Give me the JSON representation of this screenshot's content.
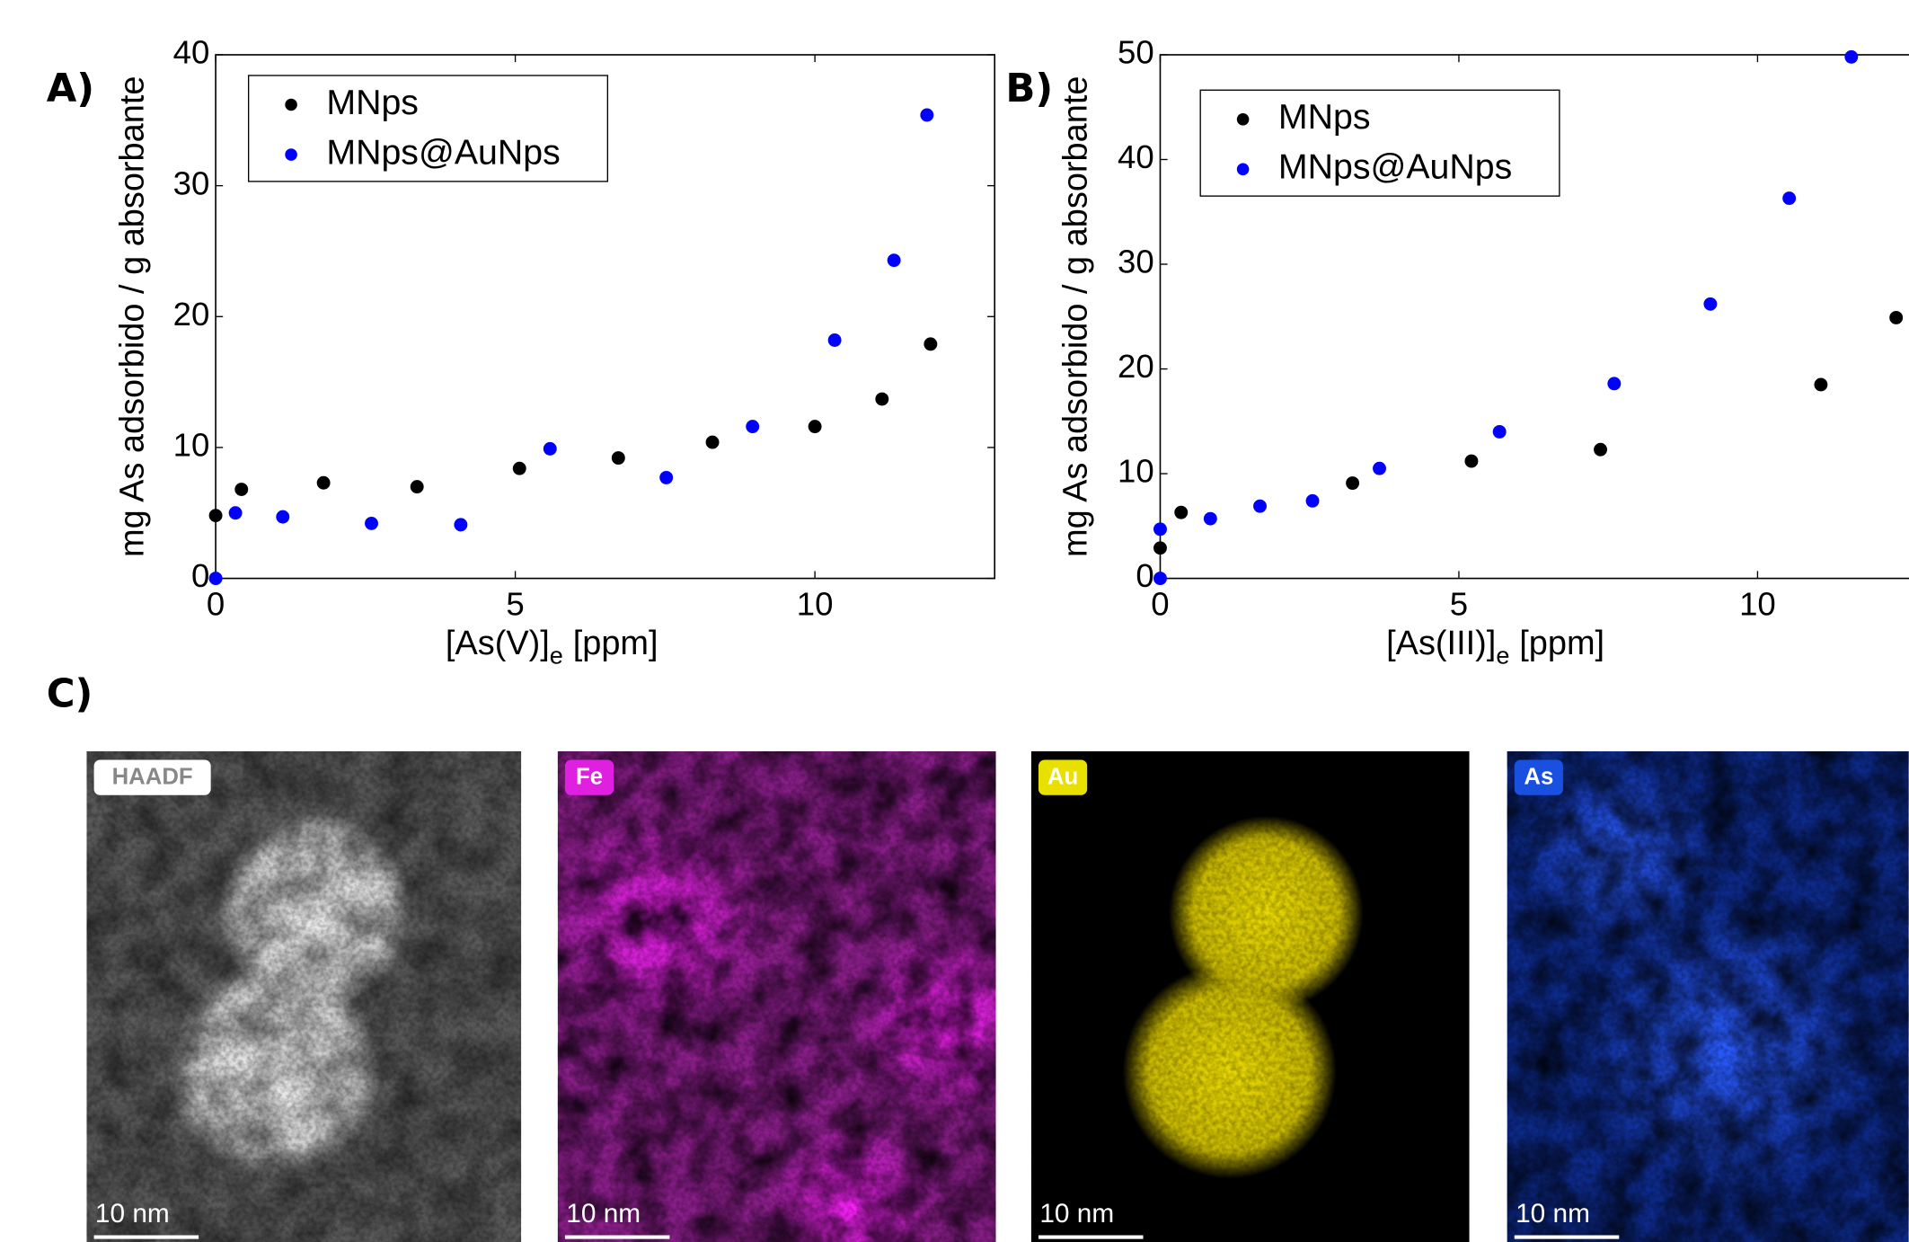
{
  "chart_data": [
    {
      "type": "scatter",
      "panel": "A)",
      "xlabel": [
        "[As(V)]",
        "e",
        "[ppm]"
      ],
      "ylabel": "mg As adsorbido / g absorbante",
      "xlim": [
        0,
        13
      ],
      "ylim": [
        0,
        40
      ],
      "xticks": [
        0,
        5,
        10
      ],
      "yticks": [
        0,
        10,
        20,
        30,
        40
      ],
      "grid": false,
      "legend": "upper left",
      "series": [
        {
          "name": "MNps",
          "color": "#000000",
          "x": [
            0,
            0.43,
            1.8,
            3.36,
            5.07,
            6.72,
            8.29,
            10,
            11.12,
            11.93
          ],
          "values": [
            4.8,
            6.8,
            7.3,
            7.0,
            8.4,
            9.2,
            10.4,
            11.6,
            13.7,
            17.9
          ]
        },
        {
          "name": "MNps@AuNps",
          "color": "#0000ff",
          "x": [
            0,
            0.33,
            1.12,
            2.6,
            4.09,
            5.58,
            7.52,
            8.96,
            10.33,
            11.32,
            11.87
          ],
          "values": [
            0,
            5.0,
            4.7,
            4.2,
            4.1,
            9.9,
            7.7,
            11.6,
            18.2,
            24.3,
            35.4
          ]
        }
      ]
    },
    {
      "type": "scatter",
      "panel": "B)",
      "xlabel": [
        "[As(III)]",
        "e",
        "[ppm]"
      ],
      "ylabel": "mg As adsorbido / g absorbante",
      "xlim": [
        0,
        13
      ],
      "ylim": [
        0,
        50
      ],
      "xticks": [
        0,
        5,
        10
      ],
      "yticks": [
        0,
        10,
        20,
        30,
        40,
        50
      ],
      "grid": false,
      "legend": "upper left",
      "series": [
        {
          "name": "MNps",
          "color": "#000000",
          "x": [
            0,
            0.35,
            3.22,
            5.21,
            7.37,
            11.06,
            12.32
          ],
          "values": [
            2.9,
            6.3,
            9.1,
            11.2,
            12.3,
            18.5,
            24.9
          ]
        },
        {
          "name": "MNps@AuNps",
          "color": "#0000ff",
          "x": [
            0,
            0,
            0.84,
            1.67,
            2.55,
            3.67,
            5.68,
            7.6,
            9.21,
            10.53,
            11.57
          ],
          "values": [
            0,
            4.7,
            5.7,
            6.9,
            7.4,
            10.5,
            14.0,
            18.6,
            26.2,
            36.3,
            49.8
          ]
        }
      ]
    }
  ],
  "micrographs": {
    "panel": "C)",
    "images": [
      {
        "label": "HAADF",
        "scale": "10 nm"
      },
      {
        "label": "Fe",
        "scale": "10 nm"
      },
      {
        "label": "Au",
        "scale": "10 nm"
      },
      {
        "label": "As",
        "scale": "10 nm"
      }
    ]
  }
}
